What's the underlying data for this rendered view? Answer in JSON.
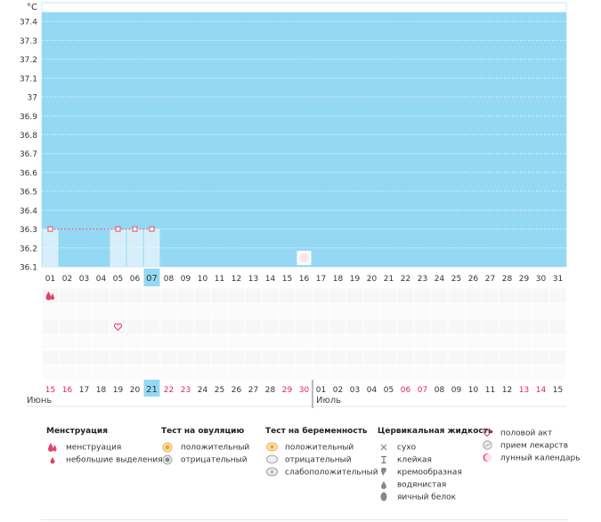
{
  "chart_data": {
    "type": "line",
    "unit_label": "°C",
    "ylim": [
      36.1,
      37.5
    ],
    "y_ticks": [
      "37.4",
      "37.3",
      "37.2",
      "37.1",
      "37",
      "36.9",
      "36.8",
      "36.7",
      "36.6",
      "36.5",
      "36.4",
      "36.3",
      "36.2",
      "36.1"
    ],
    "days": [
      "01",
      "02",
      "03",
      "04",
      "05",
      "06",
      "07",
      "08",
      "09",
      "10",
      "11",
      "12",
      "13",
      "14",
      "15",
      "16",
      "17",
      "18",
      "19",
      "20",
      "21",
      "22",
      "23",
      "24",
      "25",
      "26",
      "27",
      "28",
      "29",
      "30",
      "31"
    ],
    "highlighted_day": "07",
    "series": [
      {
        "points": [
          {
            "day": "01",
            "value": 36.3
          },
          {
            "day": "05",
            "value": 36.3
          },
          {
            "day": "06",
            "value": 36.3
          },
          {
            "day": "07",
            "value": 36.3
          }
        ]
      }
    ],
    "menstruation_days": [
      "01"
    ],
    "intercourse_days": [
      "05"
    ],
    "lunar_days": [
      "16"
    ],
    "cycle_dates": [
      {
        "label": "15",
        "red": true
      },
      {
        "label": "16",
        "red": true
      },
      {
        "label": "17",
        "red": false
      },
      {
        "label": "18",
        "red": false
      },
      {
        "label": "19",
        "red": false
      },
      {
        "label": "20",
        "red": false
      },
      {
        "label": "21",
        "red": false,
        "highlight": true
      },
      {
        "label": "22",
        "red": true
      },
      {
        "label": "23",
        "red": true
      },
      {
        "label": "24",
        "red": false
      },
      {
        "label": "25",
        "red": false
      },
      {
        "label": "26",
        "red": false
      },
      {
        "label": "27",
        "red": false
      },
      {
        "label": "28",
        "red": false
      },
      {
        "label": "29",
        "red": true
      },
      {
        "label": "30",
        "red": true
      },
      {
        "label": "01",
        "red": false
      },
      {
        "label": "02",
        "red": false
      },
      {
        "label": "03",
        "red": false
      },
      {
        "label": "04",
        "red": false
      },
      {
        "label": "05",
        "red": false
      },
      {
        "label": "06",
        "red": true
      },
      {
        "label": "07",
        "red": true
      },
      {
        "label": "08",
        "red": false
      },
      {
        "label": "09",
        "red": false
      },
      {
        "label": "10",
        "red": false
      },
      {
        "label": "11",
        "red": false
      },
      {
        "label": "12",
        "red": false
      },
      {
        "label": "13",
        "red": true
      },
      {
        "label": "14",
        "red": true
      },
      {
        "label": "15",
        "red": false
      }
    ],
    "months": [
      {
        "label": "Июнь",
        "start_index": 0
      },
      {
        "label": "Июль",
        "start_index": 16
      }
    ]
  },
  "colors": {
    "sky": "#95d8f3",
    "pale_bar": "#d6effa",
    "highlight": "#95d8f3",
    "line": "#e24b6c",
    "red_text": "#e0245e",
    "pink_icon": "#e0456b"
  },
  "legend": {
    "menstruation": {
      "title": "Менструация",
      "items": [
        {
          "icon": "drops-icon",
          "label": "менструация"
        },
        {
          "icon": "small-drop-icon",
          "label": "небольшие выделения"
        }
      ]
    },
    "ovulation": {
      "title": "Тест на овуляцию",
      "items": [
        {
          "icon": "ovulation-positive-icon",
          "label": "положительный"
        },
        {
          "icon": "ovulation-negative-icon",
          "label": "отрицательный"
        }
      ]
    },
    "pregnancy": {
      "title": "Тест на беременность",
      "items": [
        {
          "icon": "pregnancy-positive-icon",
          "label": "положительный"
        },
        {
          "icon": "pregnancy-negative-icon",
          "label": "отрицательный"
        },
        {
          "icon": "pregnancy-weak-icon",
          "label": "слабоположительный"
        }
      ]
    },
    "cervical": {
      "title": "Цервикальная жидкость",
      "items": [
        {
          "icon": "dry-icon",
          "label": "сухо"
        },
        {
          "icon": "sticky-icon",
          "label": "клейкая"
        },
        {
          "icon": "creamy-icon",
          "label": "кремообразная"
        },
        {
          "icon": "watery-icon",
          "label": "водянистая"
        },
        {
          "icon": "egg-white-icon",
          "label": "яичный белок"
        }
      ]
    },
    "other": {
      "items": [
        {
          "icon": "heart-icon",
          "label": "половой акт"
        },
        {
          "icon": "pill-icon",
          "label": "прием лекарств"
        },
        {
          "icon": "moon-icon",
          "label": "лунный календарь"
        }
      ]
    }
  }
}
